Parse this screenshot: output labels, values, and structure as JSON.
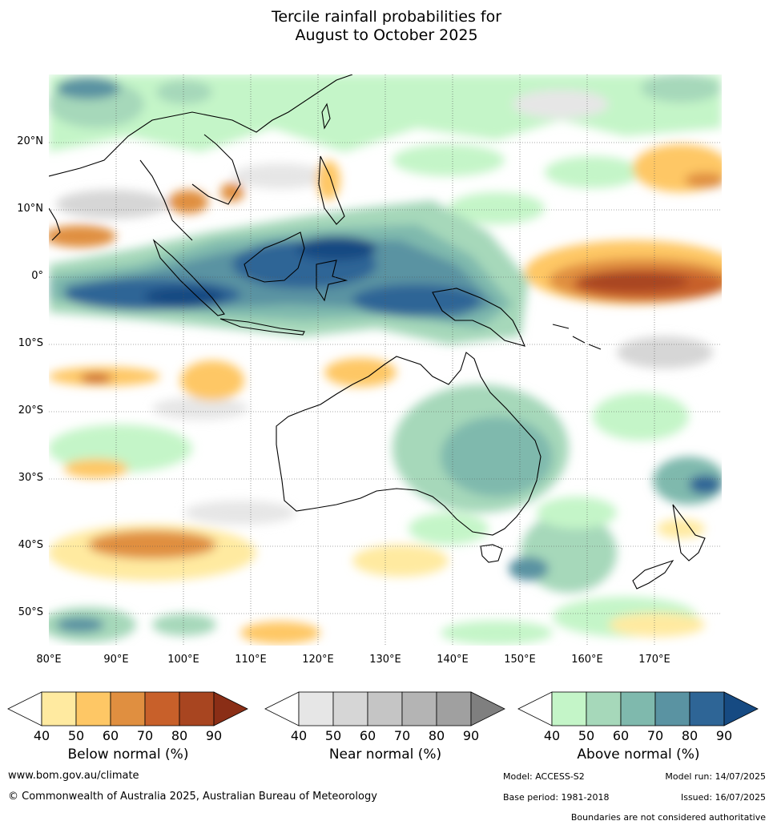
{
  "title_line1": "Tercile rainfall probabilities for",
  "title_line2": "August to October 2025",
  "map": {
    "lat_labels": [
      "20°N",
      "10°N",
      "0°",
      "10°S",
      "20°S",
      "30°S",
      "40°S",
      "50°S"
    ],
    "lon_labels": [
      "80°E",
      "90°E",
      "100°E",
      "110°E",
      "120°E",
      "130°E",
      "140°E",
      "150°E",
      "160°E",
      "170°E"
    ],
    "gridlines": true
  },
  "colorbars": [
    {
      "caption": "Below normal (%)",
      "ticks": [
        "40",
        "50",
        "60",
        "70",
        "80",
        "90"
      ],
      "colors": [
        "#ffffff",
        "#ffeaa0",
        "#fec765",
        "#e08f40",
        "#c8602a",
        "#a84520",
        "#8a2e16"
      ]
    },
    {
      "caption": "Near normal (%)",
      "ticks": [
        "40",
        "50",
        "60",
        "70",
        "80",
        "90"
      ],
      "colors": [
        "#ffffff",
        "#e6e6e6",
        "#d6d6d6",
        "#c5c5c5",
        "#b4b4b4",
        "#a0a0a0",
        "#7f7f7f"
      ]
    },
    {
      "caption": "Above normal (%)",
      "ticks": [
        "40",
        "50",
        "60",
        "70",
        "80",
        "90"
      ],
      "colors": [
        "#ffffff",
        "#c4f5c8",
        "#a6d8ba",
        "#7fb9ad",
        "#5a93a2",
        "#2e6596",
        "#164a82"
      ]
    }
  ],
  "footer": {
    "website": "www.bom.gov.au/climate",
    "copyright": "© Commonwealth of Australia 2025, Australian Bureau of Meteorology",
    "model": "Model: ACCESS-S2",
    "model_run": "Model run: 14/07/2025",
    "base_period": "Base period: 1981-2018",
    "issued": "Issued: 16/07/2025",
    "disclaimer": "Boundaries are not considered authoritative"
  }
}
